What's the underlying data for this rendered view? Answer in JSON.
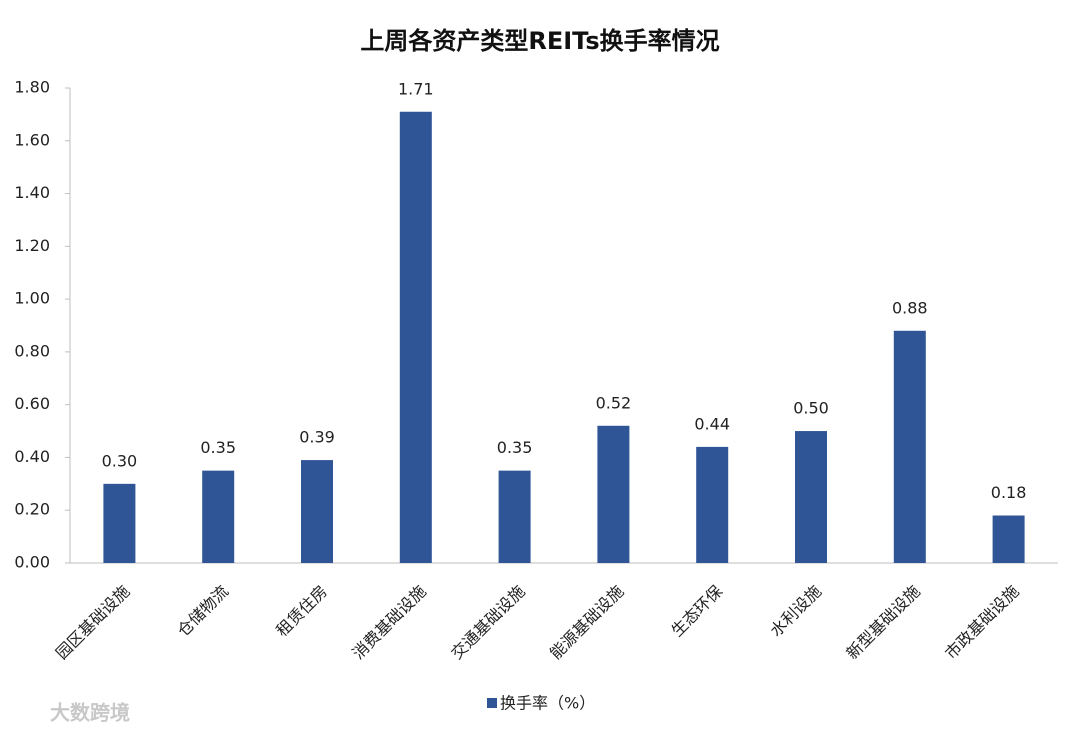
{
  "chart_data": {
    "type": "bar",
    "title": "上周各资产类型REITs换手率情况",
    "categories": [
      "园区基础设施",
      "仓储物流",
      "租赁住房",
      "消费基础设施",
      "交通基础设施",
      "能源基础设施",
      "生态环保",
      "水利设施",
      "新型基础设施",
      "市政基础设施"
    ],
    "series": [
      {
        "name": "换手率（%）",
        "color": "#2f5597",
        "values": [
          0.3,
          0.35,
          0.39,
          1.71,
          0.35,
          0.52,
          0.44,
          0.5,
          0.88,
          0.18
        ],
        "value_labels": [
          "0.30",
          "0.35",
          "0.39",
          "1.71",
          "0.35",
          "0.52",
          "0.44",
          "0.50",
          "0.88",
          "0.18"
        ]
      }
    ],
    "ylim": [
      0,
      1.8
    ],
    "yticks": [
      {
        "value": 0,
        "label": "0.00"
      },
      {
        "value": 0.2,
        "label": "0.20"
      },
      {
        "value": 0.4,
        "label": "0.40"
      },
      {
        "value": 0.6,
        "label": "0.60"
      },
      {
        "value": 0.8,
        "label": "0.80"
      },
      {
        "value": 1.0,
        "label": "1.00"
      },
      {
        "value": 1.2,
        "label": "1.20"
      },
      {
        "value": 1.4,
        "label": "1.40"
      },
      {
        "value": 1.6,
        "label": "1.60"
      },
      {
        "value": 1.8,
        "label": "1.80"
      }
    ],
    "grid": false,
    "legend": "bottom",
    "watermark": "大数跨境"
  }
}
